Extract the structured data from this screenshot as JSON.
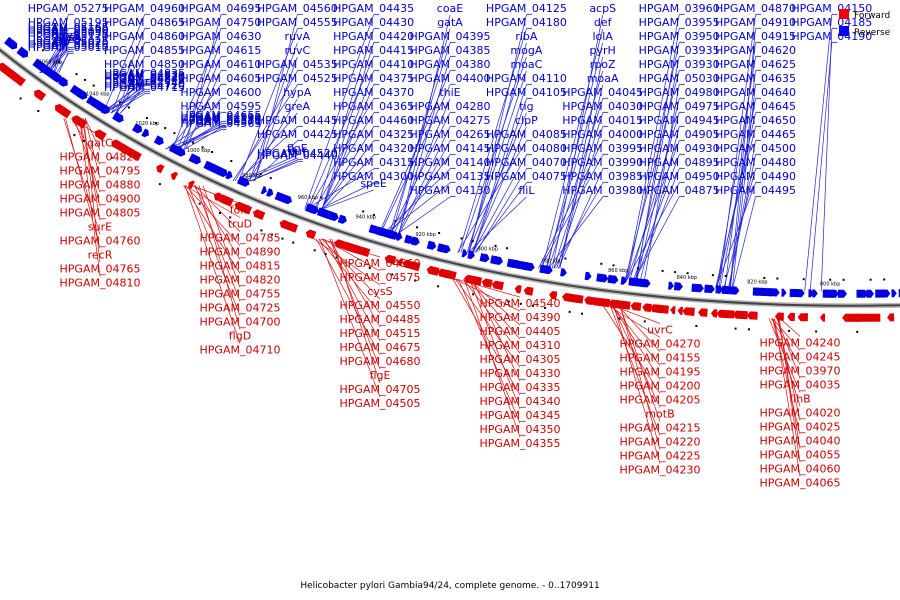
{
  "caption": "Helicobacter pylori Gambia94/24, complete genome. - 0..1709911",
  "legend": {
    "forward": "Forward",
    "reverse": "Reverse",
    "forward_color": "#ee0000",
    "reverse_color": "#0000ee"
  },
  "axis_ticks": [
    "1060 kbp",
    "1040 kbp",
    "1020 kbp",
    "1000 kbp",
    "980 kbp",
    "960 kbp",
    "940 kbp",
    "920 kbp",
    "900 kbp",
    "880 kbp",
    "860 kbp",
    "840 kbp",
    "820 kbp",
    "800 kbp"
  ],
  "reverse_labels": [
    "HPGAM_05275",
    "HPGAM_05195",
    "HPGAM_05170",
    "HPGAM_05165",
    "HPGAM_05190",
    "HPGAM_05090",
    "HPGAM_05055",
    "glyS",
    "gpsA",
    "glyQ",
    "HPGAM_05025",
    "HPGAM_05020",
    "HPGAM_05015",
    "HPGAM_05010",
    "HPGAM_04960",
    "HPGAM_04865",
    "HPGAM_04860",
    "HPGAM_04855",
    "HPGAM_04850",
    "HPGAM_04840",
    "HPGAM_04835",
    "HPGAM_04830",
    "HPGAM_04770",
    "HPGAM_04845",
    "carB",
    "HPGAM_04740",
    "HPGAM_04720",
    "HPGAM_04715",
    "HPGAM_04695",
    "HPGAM_04750",
    "HPGAM_04630",
    "HPGAM_04615",
    "HPGAM_04610",
    "HPGAM_04605",
    "HPGAM_04600",
    "HPGAM_04595",
    "HPGAM_04585",
    "HPGAM_04655",
    "HPGAM_04590",
    "HPGAM_04580",
    "HPGAM_04570",
    "HPGAM_04565",
    "HPGAM_04560",
    "HPGAM_04555",
    "ruvA",
    "ruvC",
    "HPGAM_04535",
    "HPGAM_04525",
    "hypA",
    "greA",
    "HPGAM_04445",
    "HPGAM_04425",
    "flgE",
    "dut",
    "HPGAM_04520",
    "HPGAM_04440",
    "HPGAM_04435",
    "HPGAM_04430",
    "HPGAM_04420",
    "HPGAM_04415",
    "HPGAM_04410",
    "HPGAM_04375",
    "HPGAM_04370",
    "HPGAM_04365",
    "HPGAM_04460",
    "HPGAM_04325",
    "HPGAM_04320",
    "HPGAM_04315",
    "HPGAM_04300",
    "speE",
    "coaE",
    "gatA",
    "HPGAM_04395",
    "HPGAM_04385",
    "HPGAM_04380",
    "HPGAM_04400",
    "thiE",
    "HPGAM_04280",
    "HPGAM_04275",
    "HPGAM_04265",
    "HPGAM_04145",
    "HPGAM_04140",
    "HPGAM_04135",
    "HPGAM_04130",
    "HPGAM_04125",
    "HPGAM_04180",
    "ribA",
    "mogA",
    "moaC",
    "HPGAM_04110",
    "HPGAM_04105",
    "tig",
    "clpP",
    "HPGAM_04085",
    "HPGAM_04080",
    "HPGAM_04070",
    "HPGAM_04075",
    "fliL",
    "acpS",
    "def",
    "lolA",
    "pyrH",
    "rpoZ",
    "moaA",
    "HPGAM_04045",
    "HPGAM_04030",
    "HPGAM_04015",
    "HPGAM_04000",
    "HPGAM_03995",
    "HPGAM_03990",
    "HPGAM_03985",
    "HPGAM_03980",
    "HPGAM_03960",
    "HPGAM_03955",
    "HPGAM_03950",
    "HPGAM_03935",
    "HPGAM_03930",
    "HPGAM_05030",
    "HPGAM_04980",
    "HPGAM_04975",
    "HPGAM_04945",
    "HPGAM_04905",
    "HPGAM_04930",
    "HPGAM_04895",
    "HPGAM_04950",
    "HPGAM_04875",
    "HPGAM_04870",
    "HPGAM_04910",
    "HPGAM_04915",
    "HPGAM_04620",
    "HPGAM_04625",
    "HPGAM_04635",
    "HPGAM_04640",
    "HPGAM_04645",
    "HPGAM_04650",
    "HPGAM_04465",
    "HPGAM_04500",
    "HPGAM_04480",
    "HPGAM_04490",
    "HPGAM_04495",
    "HPGAM_04150",
    "HPGAM_04185",
    "HPGAM_04190"
  ],
  "forward_labels": [
    "gatC",
    "HPGAM_04825",
    "HPGAM_04795",
    "HPGAM_04880",
    "HPGAM_04900",
    "HPGAM_04805",
    "surE",
    "HPGAM_04760",
    "recR",
    "HPGAM_04765",
    "HPGAM_04810",
    "folE",
    "truD",
    "HPGAM_04785",
    "HPGAM_04890",
    "HPGAM_04815",
    "HPGAM_04820",
    "HPGAM_04755",
    "HPGAM_04725",
    "HPGAM_04700",
    "flgD",
    "HPGAM_04710",
    "HPGAM_04660",
    "HPGAM_04575",
    "cysS",
    "HPGAM_04550",
    "HPGAM_04485",
    "HPGAM_04515",
    "HPGAM_04675",
    "HPGAM_04680",
    "flgE",
    "HPGAM_04705",
    "HPGAM_04505",
    "HPGAM_04540",
    "HPGAM_04390",
    "HPGAM_04405",
    "HPGAM_04310",
    "HPGAM_04305",
    "HPGAM_04330",
    "HPGAM_04335",
    "HPGAM_04340",
    "HPGAM_04345",
    "HPGAM_04350",
    "HPGAM_04355",
    "uvrC",
    "HPGAM_04270",
    "HPGAM_04155",
    "HPGAM_04195",
    "HPGAM_04200",
    "HPGAM_04205",
    "motB",
    "HPGAM_04215",
    "HPGAM_04220",
    "HPGAM_04225",
    "HPGAM_04230",
    "HPGAM_04240",
    "HPGAM_04245",
    "HPGAM_03970",
    "HPGAM_04035",
    "flhB",
    "HPGAM_04020",
    "HPGAM_04025",
    "HPGAM_04040",
    "HPGAM_04055",
    "HPGAM_04060",
    "HPGAM_04065"
  ]
}
